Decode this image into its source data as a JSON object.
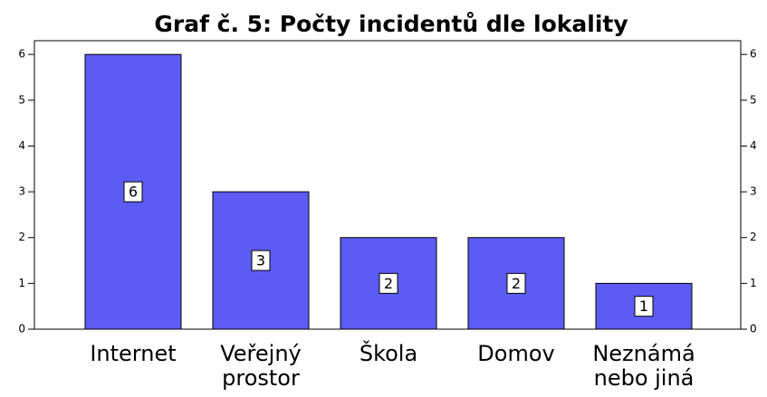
{
  "chart_data": {
    "type": "bar",
    "title": "Graf č. 5: Počty incidentů dle lokality",
    "categories": [
      "Internet",
      "Veřejný prostor",
      "Škola",
      "Domov",
      "Neznámá nebo jiná"
    ],
    "values": [
      6,
      3,
      2,
      2,
      1
    ],
    "color": "#5c5cf5",
    "ylim": [
      0,
      6.3
    ],
    "yticks": [
      0,
      1,
      2,
      3,
      4,
      5,
      6
    ],
    "grid": false
  }
}
